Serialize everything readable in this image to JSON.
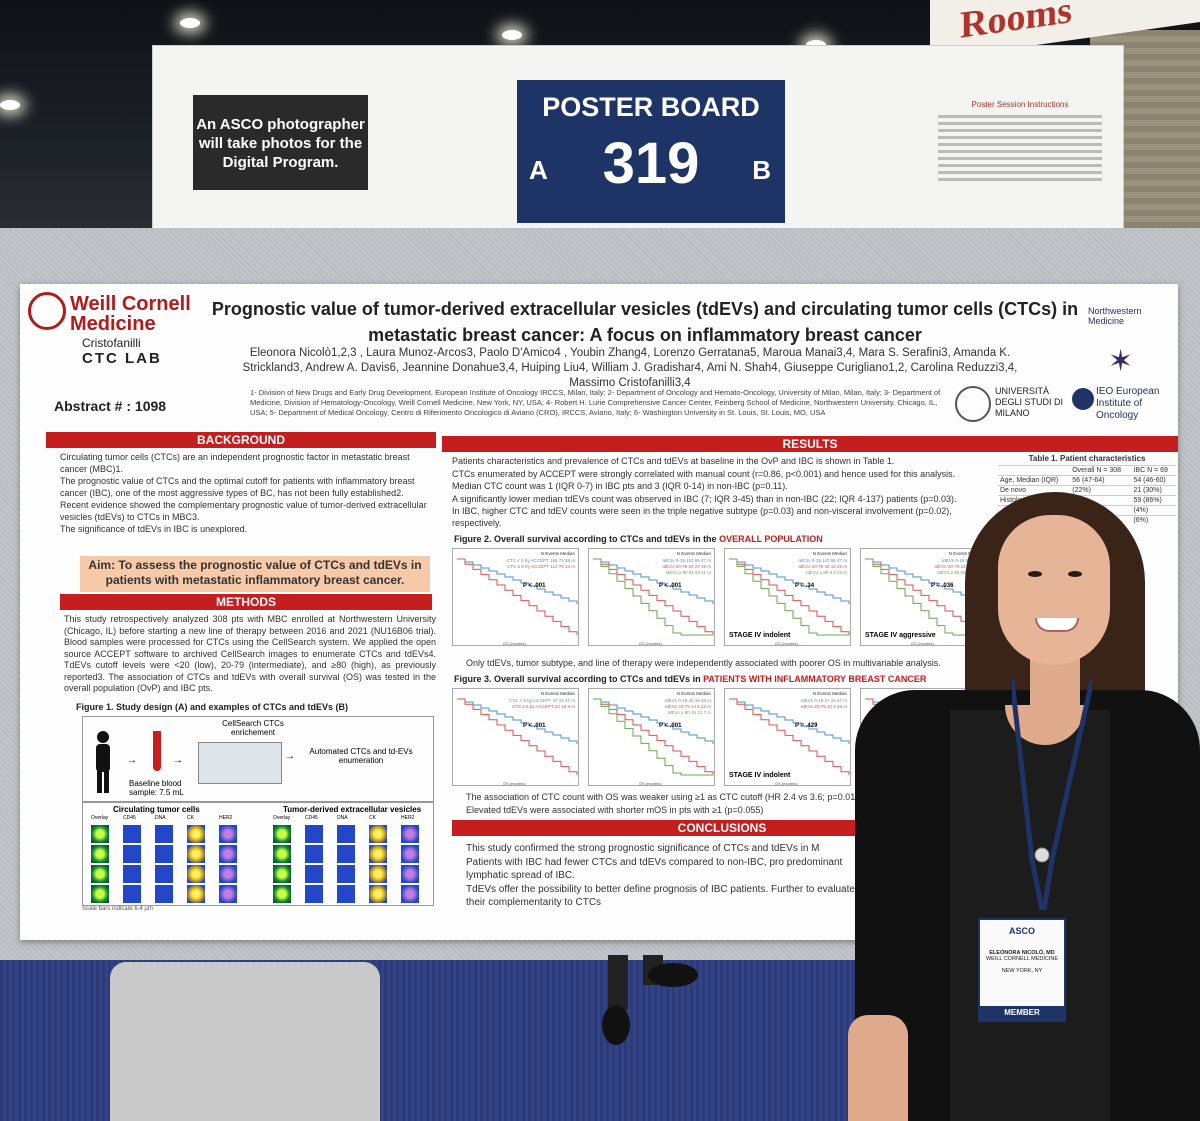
{
  "venue": {
    "rooms_sign": "Rooms",
    "photo_note": "An ASCO photographer will take photos for the Digital Program.",
    "board_title": "POSTER BOARD",
    "board_number": "319",
    "board_side_left": "A",
    "board_side_right": "B",
    "instructions_title": "Poster Session Instructions"
  },
  "poster": {
    "logo_line1": "Weill Cornell",
    "logo_line2": "Medicine",
    "lab_line1": "Cristofanilli",
    "lab_line2": "CTC LAB",
    "abstract": "Abstract # : 1098",
    "title": "Prognostic value of tumor-derived extracellular vesicles (tdEVs) and circulating tumor cells (CTCs) in metastatic breast cancer: A focus on inflammatory breast cancer",
    "authors": "Eleonora Nicolò1,2,3 , Laura Munoz-Arcos3, Paolo D'Amico4 , Youbin Zhang4, Lorenzo Gerratana5, Maroua Manai3,4, Mara S. Serafini3, Amanda K. Strickland3, Andrew A. Davis6, Jeannine Donahue3,4, Huiping Liu4, William J. Gradishar4, Ami N. Shah4, Giuseppe Curigliano1,2, Carolina Reduzzi3,4, Massimo Cristofanilli3,4",
    "affiliations": "1- Division of New Drugs and Early Drug Development, European Institute of Oncology IRCCS, Milan, Italy; 2- Department of Oncology and Hemato-Oncology, University of Milan, Milan, Italy; 3- Department of Medicine, Division of Hematology-Oncology, Weill Cornell Medicine, New York, NY, USA; 4- Robert H. Lurie Comprehensive Cancer Center, Feinberg School of Medicine, Northwestern University, Chicago, IL, USA; 5- Department of Medical Oncology, Centro di Riferimento Oncologico di Aviano (CRO), IRCCS, Aviano, Italy; 6- Washington University in St. Louis, St. Louis, MO, USA",
    "nw_logo": "Northwestern Medicine",
    "unimi_logo": "UNIVERSITÀ DEGLI STUDI DI MILANO",
    "ieo_logo": "IEO European Institute of Oncology",
    "background_header": "BACKGROUND",
    "background_bullets": [
      "Circulating tumor cells (CTCs) are an independent prognostic factor in metastatic breast cancer (MBC)1.",
      "The prognostic value of CTCs and the optimal cutoff for patients with inflammatory breast cancer (IBC), one of the most aggressive types of BC, has not been fully established2.",
      "Recent evidence showed the complementary prognostic value of tumor-derived extracellular vesicles (tdEVs) to CTCs in MBC3.",
      "The significance of tdEVs in IBC is unexplored."
    ],
    "aim": "Aim: To assess the prognostic value of CTCs and tdEVs in patients with metastatic inflammatory breast cancer.",
    "methods_header": "METHODS",
    "methods_text": "This study retrospectively analyzed 308 pts with MBC enrolled at Northwestern University (Chicago, IL) before starting a new line of therapy between 2016 and 2021 (NU16B06 trial). Blood samples were processed for CTCs using the CellSearch system. We applied the open source ACCEPT software to archived CellSearch images to enumerate CTCs and tdEVs4. TdEVs cutoff levels were <20 (low), 20-79 (intermediate), and ≥80 (high), as previously reported3. The association of CTCs and tdEVs with overall survival (OS) was tested in the overall population (OvP) and IBC pts.",
    "fig1_caption": "Figure 1. Study design (A) and examples of CTCs and tdEVs (B)",
    "fig1_cellsearch": "CellSearch CTCs enrichement",
    "fig1_automated": "Automated CTCs and td-EVs enumeration",
    "fig1_baseline": "Baseline blood sample: 7.5 mL",
    "fig1_ctc_title": "Circulating tumor cells",
    "fig1_tdev_title": "Tumor-derived extracellular vesicles",
    "fig1_channels": [
      "Overlay",
      "CD45",
      "DNA",
      "CK",
      "HER2"
    ],
    "fig1_scale": "Scale bars indicate 6.4 µm",
    "results_header": "RESULTS",
    "results_bullets": [
      "Patients characteristics and prevalence of CTCs and tdEVs at baseline in the OvP and IBC is shown in Table 1.",
      "CTCs enumerated by ACCEPT were strongly correlated with manual count (r=0.86, p<0.001) and hence used for this analysis.",
      "Median CTC count was 1 (IQR 0-7) in IBC pts and 3 (IQR 0-14) in non-IBC (p=0.11).",
      "A significantly lower median tdEVs count was observed in IBC (7; IQR 3-45) than in non-IBC (22; IQR 4-137) patients (p=0.03).",
      "In IBC, higher CTC and tdEV counts were seen in the triple negative subtype (p=0.03) and non-visceral involvement (p=0.02), respectively."
    ],
    "table1_title": "Table 1. Patient characteristics",
    "table1_cols": [
      "",
      "Overall N = 308",
      "IBC N = 69"
    ],
    "table1_rows": [
      [
        "Age, Median (IQR)",
        "56 (47-64)",
        "54 (46-60)"
      ],
      [
        "De novo",
        "(22%)",
        "21 (30%)"
      ],
      [
        "Histology",
        "",
        "59 (86%)"
      ],
      [
        "",
        "",
        "(4%)"
      ],
      [
        "",
        "",
        "(6%)"
      ]
    ],
    "fig2_caption_pre": "Figure 2. Overall survival according to CTCs and tdEVs in the ",
    "fig2_caption_red": "OVERALL POPULATION",
    "fig2_panels": [
      {
        "legend": [
          "CTC < 5 by ACCEPT  196  74  38 m",
          "CTC ≥ 5 by ACCEPT  112  76  14 m"
        ],
        "p": "P < .001",
        "stage": ""
      },
      {
        "legend": [
          "tdEVs 0-19  153  59  47 m",
          "tdEVs 20-79  64  27  29 m",
          "tdEVs ≥ 80  91  64  11 m"
        ],
        "p": "P < .001",
        "stage": ""
      },
      {
        "legend": [
          "tdEVs 0-19  147  56  47 m",
          "tdEVs 20-79  40  15  26 m",
          "tdEVs ≥ 80  9  3  29 m"
        ],
        "p": "P = .34",
        "stage": "STAGE IV indolent"
      },
      {
        "legend": [
          "tdEVs 0-19  5  3  16 m",
          "tdEVs 20-79  24  12  28 m",
          "tdEVs ≥ 80  82  61  10 m"
        ],
        "p": "P = .036",
        "stage": "STAGE IV aggressive"
      }
    ],
    "km_header": [
      "N",
      "Events",
      "Median"
    ],
    "os_axis": "OS (months)",
    "fig2_note": "Only tdEVs, tumor subtype, and line of therapy were independently associated with poorer OS in multivariable analysis.",
    "fig3_caption_pre": "Figure 3. Overall survival according to CTCs and tdEVs in ",
    "fig3_caption_red": "PATIENTS WITH INFLAMMATORY BREAST CANCER",
    "fig3_panels": [
      {
        "legend": [
          "CTC < 5 by ACCEPT  47  19  47 m",
          "CTC ≥ 5 by ACCEPT  22  19  8 m"
        ],
        "p": "P < .001",
        "stage": ""
      },
      {
        "legend": [
          "tdEVs 0-19  40  19  33 m",
          "tdEVs 20-79  14  6  23 m",
          "tdEVs ≥ 80  15  13  7 m"
        ],
        "p": "P < .001",
        "stage": ""
      },
      {
        "legend": [
          "tdEVs 0-19  27  16  47 m",
          "tdEVs 20-79  10  3  29 m"
        ],
        "p": "P = .429",
        "stage": "STAGE IV indolent"
      },
      {
        "legend": [],
        "p": "",
        "stage": "STAGE IV ag"
      }
    ],
    "fig3_bullets": [
      "The association of CTC count with OS was weaker using ≥1 as CTC cutoff (HR 2.4 vs 3.6; p=0.01).",
      "Elevated tdEVs were associated with shorter mOS in pts with ≥1 (p=0.055)"
    ],
    "conclusions_header": "CONCLUSIONS",
    "conclusions_bullets": [
      "This study confirmed the strong prognostic significance of CTCs and tdEVs in M",
      "Patients with IBC had fewer CTCs and tdEVs compared to non-IBC, pro predominant lymphatic spread of IBC.",
      "TdEVs offer the possibility to better define prognosis of IBC patients. Further to evaluate their complementarity to CTCs"
    ]
  },
  "badge": {
    "org": "ASCO",
    "name": "ELEONORA NICOLÒ, MD",
    "affiliation": "WEILL CORNELL MEDICINE",
    "city": "NEW YORK, NY",
    "role": "MEMBER"
  },
  "colors": {
    "poster_red": "#c41e1e",
    "board_navy": "#1f3466",
    "aim_peach": "#f6c9a8",
    "km_blue": "#4a90d9",
    "km_red": "#d9534f",
    "km_green": "#6aa84f"
  }
}
